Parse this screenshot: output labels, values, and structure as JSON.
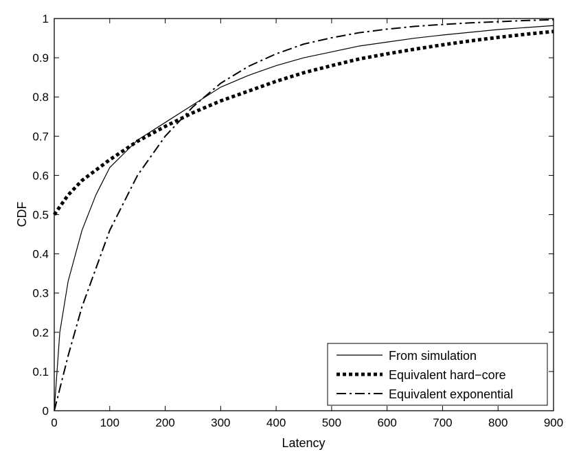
{
  "chart_data": {
    "type": "line",
    "title": "",
    "xlabel": "Latency",
    "ylabel": "CDF",
    "xlim": [
      0,
      900
    ],
    "ylim": [
      0,
      1
    ],
    "xticks": [
      0,
      100,
      200,
      300,
      400,
      500,
      600,
      700,
      800,
      900
    ],
    "yticks": [
      0,
      0.1,
      0.2,
      0.3,
      0.4,
      0.5,
      0.6,
      0.7,
      0.8,
      0.9,
      1
    ],
    "xtick_labels": [
      "0",
      "100",
      "200",
      "300",
      "400",
      "500",
      "600",
      "700",
      "800",
      "900"
    ],
    "ytick_labels": [
      "0",
      "0.1",
      "0.2",
      "0.3",
      "0.4",
      "0.5",
      "0.6",
      "0.7",
      "0.8",
      "0.9",
      "1"
    ],
    "grid": false,
    "legend_position": "bottom-right",
    "series": [
      {
        "name": "From simulation",
        "style": "solid",
        "width": "thin",
        "color": "#000000",
        "x": [
          0,
          10,
          25,
          50,
          75,
          100,
          150,
          200,
          250,
          300,
          350,
          400,
          450,
          500,
          550,
          600,
          650,
          700,
          750,
          800,
          850,
          900
        ],
        "y": [
          0.0,
          0.2,
          0.33,
          0.46,
          0.55,
          0.62,
          0.69,
          0.735,
          0.78,
          0.825,
          0.855,
          0.88,
          0.9,
          0.915,
          0.93,
          0.94,
          0.95,
          0.958,
          0.965,
          0.972,
          0.977,
          0.982
        ]
      },
      {
        "name": "Equivalent hard−core",
        "style": "dotted",
        "width": "thick",
        "color": "#000000",
        "x": [
          0,
          25,
          50,
          100,
          150,
          200,
          250,
          300,
          350,
          400,
          450,
          500,
          550,
          600,
          650,
          700,
          750,
          800,
          850,
          900
        ],
        "y": [
          0.5,
          0.55,
          0.587,
          0.64,
          0.687,
          0.725,
          0.76,
          0.79,
          0.815,
          0.84,
          0.862,
          0.88,
          0.897,
          0.91,
          0.922,
          0.933,
          0.943,
          0.952,
          0.96,
          0.967
        ]
      },
      {
        "name": "Equivalent exponential",
        "style": "dashdot",
        "width": "medium",
        "color": "#000000",
        "x": [
          0,
          25,
          50,
          100,
          150,
          200,
          250,
          300,
          350,
          400,
          450,
          500,
          550,
          600,
          650,
          700,
          750,
          800,
          850,
          900
        ],
        "y": [
          0.0,
          0.14,
          0.265,
          0.46,
          0.6,
          0.7,
          0.775,
          0.835,
          0.878,
          0.91,
          0.935,
          0.951,
          0.964,
          0.973,
          0.98,
          0.985,
          0.989,
          0.992,
          0.995,
          0.997
        ]
      }
    ]
  }
}
